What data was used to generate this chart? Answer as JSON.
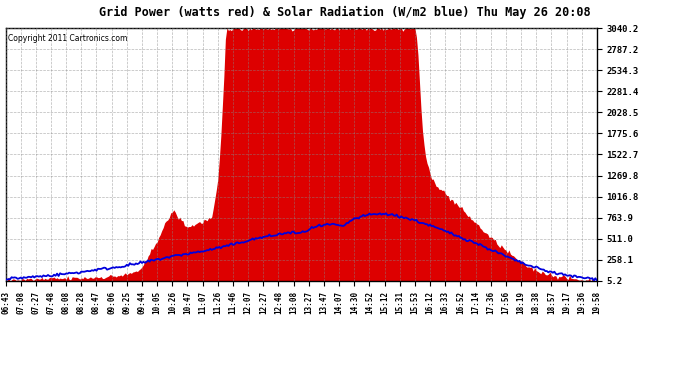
{
  "title": "Grid Power (watts red) & Solar Radiation (W/m2 blue) Thu May 26 20:08",
  "copyright": "Copyright 2011 Cartronics.com",
  "background_color": "#ffffff",
  "plot_bg_color": "#ffffff",
  "grid_color": "#888888",
  "yticks": [
    5.2,
    258.1,
    511.0,
    763.9,
    1016.8,
    1269.8,
    1522.7,
    1775.6,
    2028.5,
    2281.4,
    2534.3,
    2787.2,
    3040.2
  ],
  "ymin": 0,
  "ymax": 3040.2,
  "red_color": "#dd0000",
  "blue_color": "#0000dd",
  "x_labels": [
    "06:43",
    "07:08",
    "07:27",
    "07:48",
    "08:08",
    "08:28",
    "08:47",
    "09:06",
    "09:25",
    "09:44",
    "10:05",
    "10:26",
    "10:47",
    "11:07",
    "11:26",
    "11:46",
    "12:07",
    "12:27",
    "12:48",
    "13:08",
    "13:27",
    "13:47",
    "14:07",
    "14:30",
    "14:52",
    "15:12",
    "15:31",
    "15:53",
    "16:12",
    "16:33",
    "16:52",
    "17:14",
    "17:36",
    "17:56",
    "18:19",
    "18:38",
    "18:57",
    "19:17",
    "19:36",
    "19:58"
  ]
}
